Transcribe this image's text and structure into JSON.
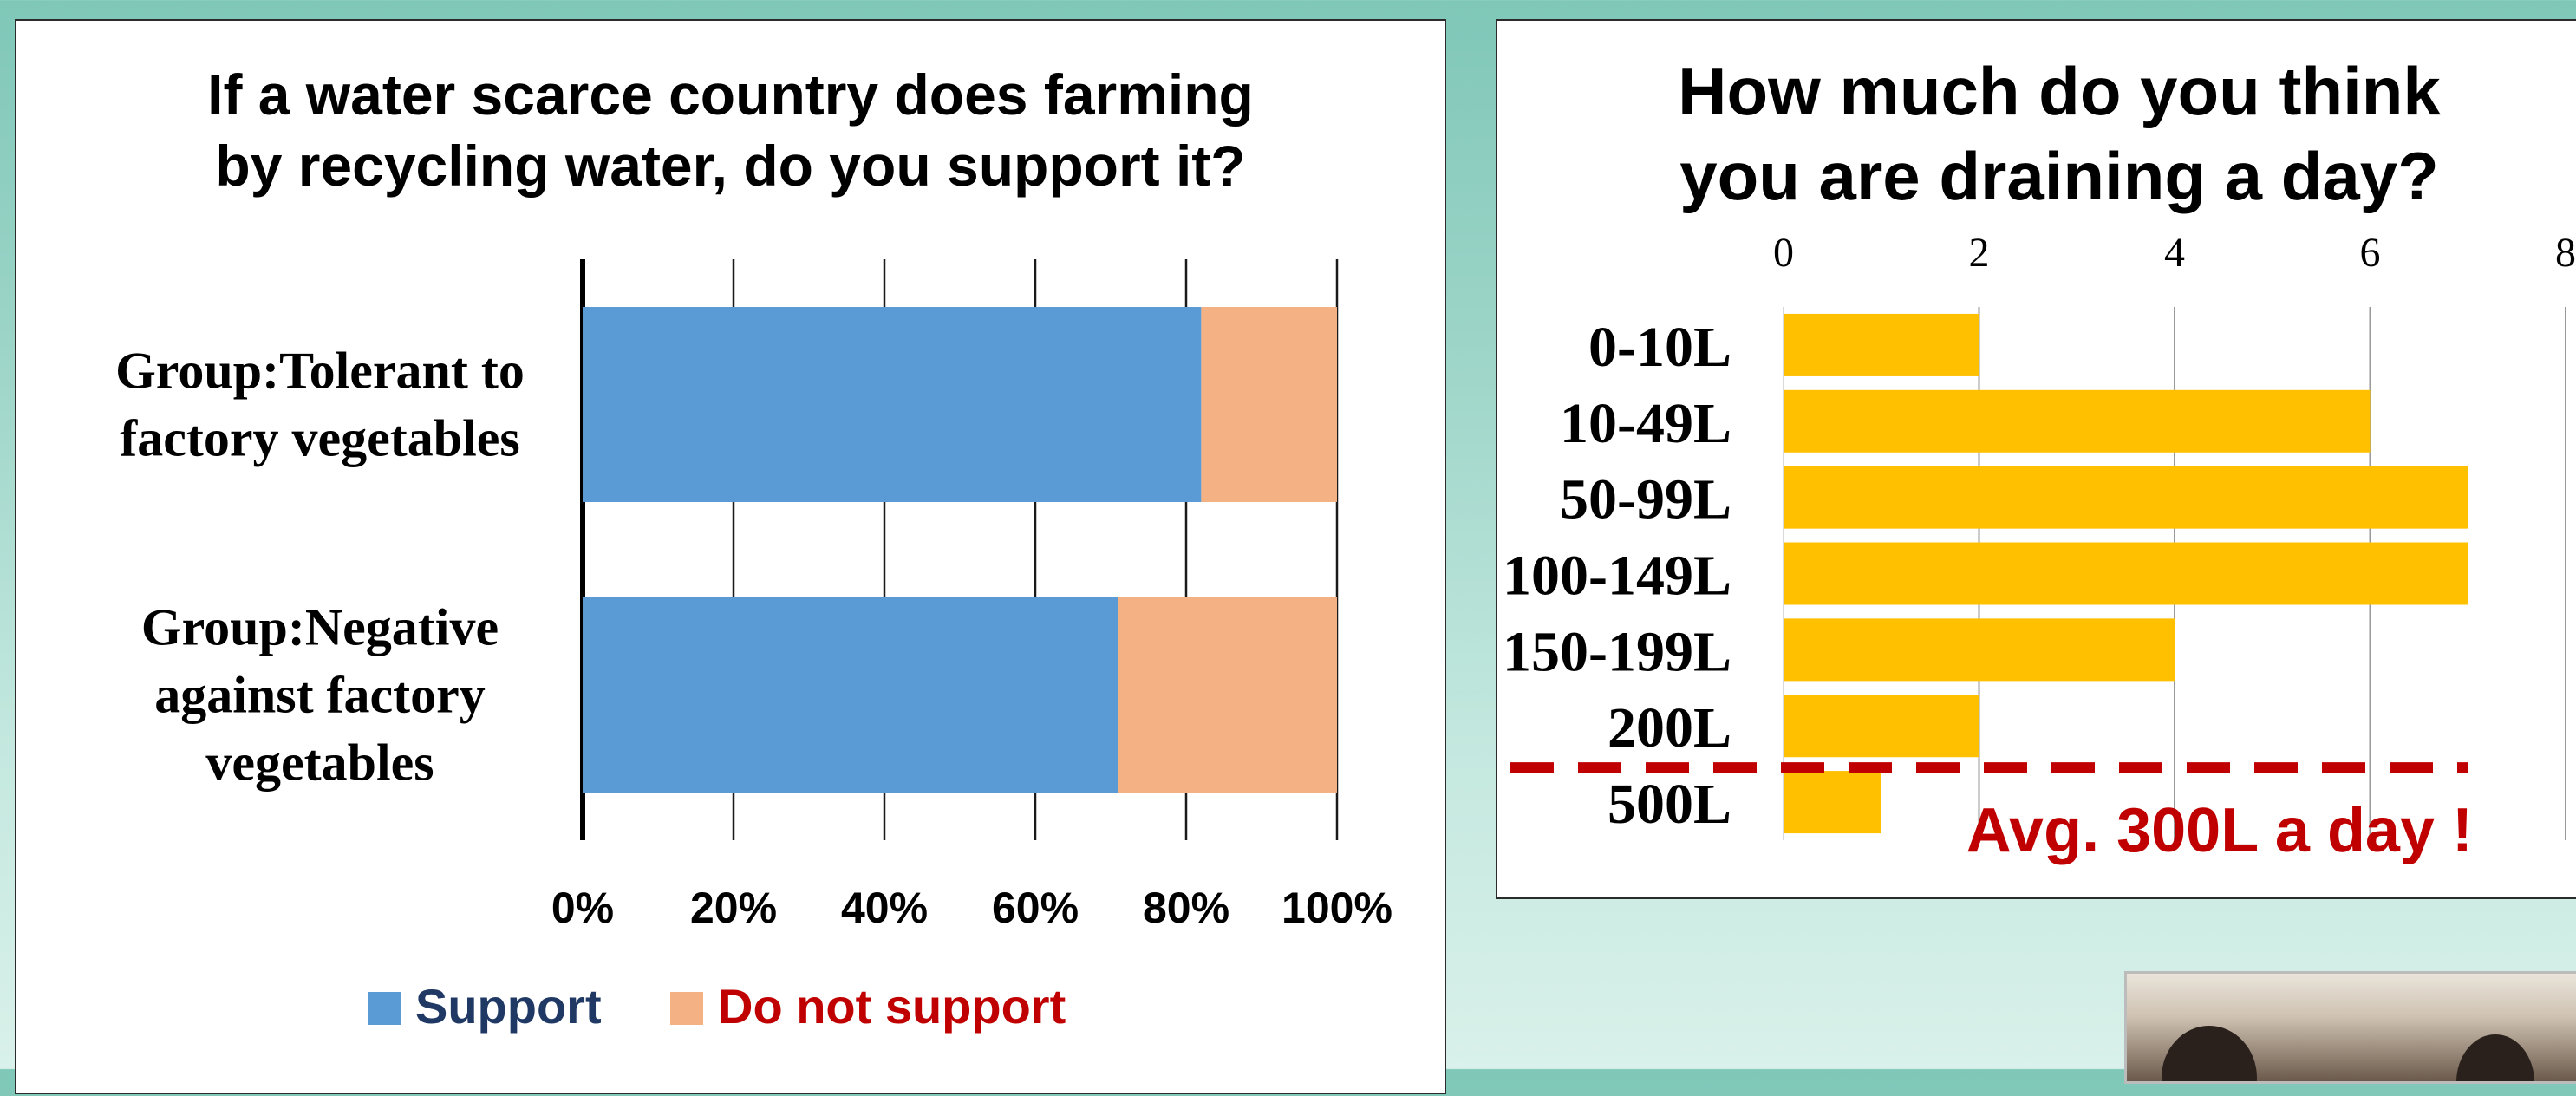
{
  "chart_data": [
    {
      "type": "bar",
      "orientation": "horizontal",
      "stacked": true,
      "title": "If a water scarce country does farming by recycling water, do you support it?",
      "title_lines": [
        "If a water scarce country does farming",
        "by recycling water, do you support it?"
      ],
      "categories": [
        "Group:Tolerant to factory vegetables",
        "Group:Negative against factory vegetables"
      ],
      "category_lines": [
        [
          "Group:Tolerant to",
          "factory vegetables"
        ],
        [
          "Group:Negative",
          "against factory",
          "vegetables"
        ]
      ],
      "series": [
        {
          "name": "Support",
          "values": [
            0.82,
            0.71
          ],
          "color": "#5b9bd5",
          "label_color": "#1f3864"
        },
        {
          "name": "Do not support",
          "values": [
            0.18,
            0.29
          ],
          "color": "#f4b183",
          "label_color": "#c00000"
        }
      ],
      "x_ticks": [
        "0%",
        "20%",
        "40%",
        "60%",
        "80%",
        "100%"
      ],
      "xlim": [
        0,
        1
      ],
      "grid": true,
      "legend": "bottom"
    },
    {
      "type": "bar",
      "orientation": "horizontal",
      "title": "How much do you think you are draining a day?",
      "title_lines": [
        "How much do you think",
        "you are draining a day?"
      ],
      "categories": [
        "0-10L",
        "10-49L",
        "50-99L",
        "100-149L",
        "150-199L",
        "200L",
        "500L"
      ],
      "values": [
        2,
        6,
        7,
        7,
        4,
        2,
        1
      ],
      "color": "#ffc000",
      "x_ticks": [
        "0",
        "2",
        "4",
        "6",
        "8"
      ],
      "xlim": [
        0,
        8
      ],
      "grid": true,
      "annotation": {
        "text": "Avg. 300L a day !",
        "color": "#c00000",
        "line_between": [
          "200L",
          "500L"
        ]
      }
    }
  ],
  "photo": {
    "icon": "photo-thumbnail"
  }
}
